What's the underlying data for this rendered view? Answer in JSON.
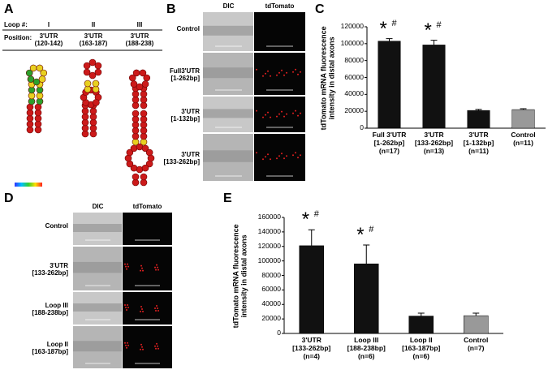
{
  "panel_a": {
    "label": "A",
    "loop_header": "Loop #:",
    "loops": [
      "I",
      "II",
      "III"
    ],
    "position_header": "Position:",
    "positions": [
      "3'UTR\n(120-142)",
      "3'UTR\n(163-187)",
      "3'UTR\n(188-238)"
    ]
  },
  "panel_b": {
    "label": "B",
    "columns": [
      "DIC",
      "tdTomato"
    ],
    "rows": [
      "Control",
      "Full3'UTR\n[1-262bp]",
      "3'UTR\n[1-132bp]",
      "3'UTR\n[133-262bp]"
    ]
  },
  "panel_d": {
    "label": "D",
    "columns": [
      "DIC",
      "tdTomato"
    ],
    "rows": [
      "Control",
      "3'UTR\n[133-262bp]",
      "Loop III\n[188-238bp]",
      "Loop II\n[163-187bp]"
    ]
  },
  "chart_data": [
    {
      "type": "bar",
      "panel_label": "C",
      "y_label": "tdTomato mRNA fluorescence\nintensity in distal axons",
      "categories": [
        "Full 3'UTR\n[1-262bp]\n(n=17)",
        "3'UTR\n[133-262bp]\n(n=13)",
        "3'UTR\n[1-132bp]\n(n=11)",
        "Control\n(n=11)"
      ],
      "values": [
        103000,
        98500,
        21000,
        22000
      ],
      "errors": [
        3000,
        5500,
        1200,
        1000
      ],
      "colors": [
        "#111111",
        "#111111",
        "#111111",
        "#999999"
      ],
      "annotations": [
        [
          "*",
          "#"
        ],
        [
          "*",
          "#"
        ],
        null,
        null
      ],
      "ylim": [
        0,
        120000
      ],
      "yticks": [
        0,
        20000,
        40000,
        60000,
        80000,
        100000,
        120000
      ]
    },
    {
      "type": "bar",
      "panel_label": "E",
      "y_label": "tdTomato mRNA fluorescence\nintensity in distal axons",
      "categories": [
        "3'UTR\n[133-262bp]\n(n=4)",
        "Loop III\n[188-238bp]\n(n=6)",
        "Loop II\n[163-187bp]\n(n=6)",
        "Control\n(n=7)"
      ],
      "values": [
        121000,
        96000,
        24000,
        24500
      ],
      "errors": [
        22000,
        26000,
        4000,
        3500
      ],
      "colors": [
        "#111111",
        "#111111",
        "#111111",
        "#999999"
      ],
      "annotations": [
        [
          "*",
          "#"
        ],
        [
          "*",
          "#"
        ],
        null,
        null
      ],
      "ylim": [
        0,
        160000
      ],
      "yticks": [
        0,
        20000,
        40000,
        60000,
        80000,
        100000,
        120000,
        140000,
        160000
      ]
    }
  ]
}
